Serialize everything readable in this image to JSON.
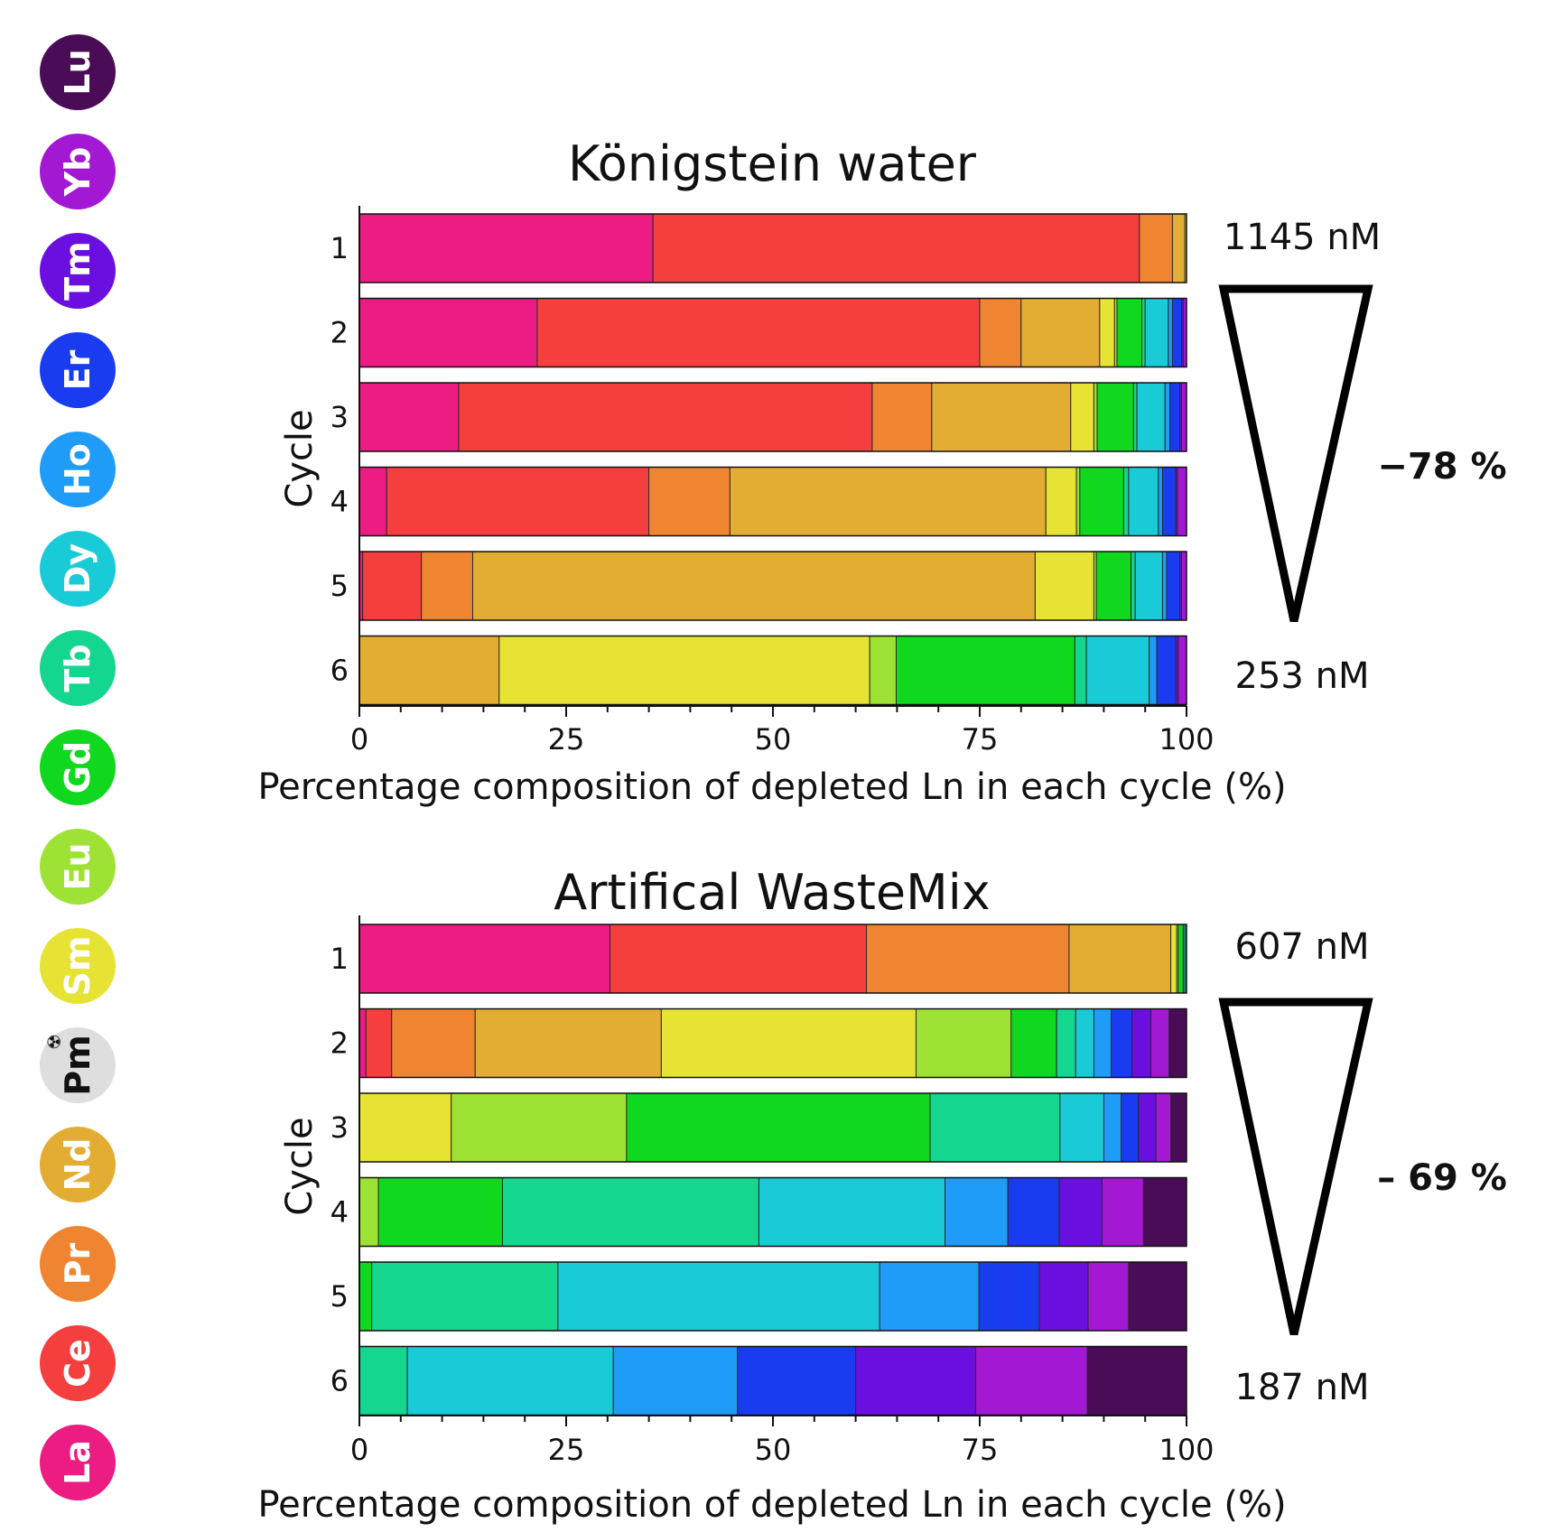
{
  "legend": {
    "elements": [
      {
        "symbol": "Lu",
        "color": "#4a0b57",
        "text_color": "#ffffff"
      },
      {
        "symbol": "Yb",
        "color": "#a318d3",
        "text_color": "#ffffff"
      },
      {
        "symbol": "Tm",
        "color": "#6a0fe0",
        "text_color": "#ffffff"
      },
      {
        "symbol": "Er",
        "color": "#1a3cf0",
        "text_color": "#ffffff"
      },
      {
        "symbol": "Ho",
        "color": "#1e9cf8",
        "text_color": "#ffffff"
      },
      {
        "symbol": "Dy",
        "color": "#19cbd6",
        "text_color": "#ffffff"
      },
      {
        "symbol": "Tb",
        "color": "#15d68e",
        "text_color": "#ffffff"
      },
      {
        "symbol": "Gd",
        "color": "#10d81e",
        "text_color": "#ffffff"
      },
      {
        "symbol": "Eu",
        "color": "#9de234",
        "text_color": "#ffffff"
      },
      {
        "symbol": "Sm",
        "color": "#e6e335",
        "text_color": "#ffffff"
      },
      {
        "symbol": "Pm",
        "color": "#dedede",
        "text_color": "#111111"
      },
      {
        "symbol": "Nd",
        "color": "#e3ac32",
        "text_color": "#ffffff"
      },
      {
        "symbol": "Pr",
        "color": "#ef8530",
        "text_color": "#ffffff"
      },
      {
        "symbol": "Ce",
        "color": "#f53f3f",
        "text_color": "#ffffff"
      },
      {
        "symbol": "La",
        "color": "#ec1c82",
        "text_color": "#ffffff"
      }
    ],
    "radioactive_mark": "☢"
  },
  "chart_data": [
    {
      "type": "bar",
      "orientation": "horizontal",
      "stacked": true,
      "title": "Königstein water",
      "xlabel": "Percentage composition of depleted Ln in each cycle (%)",
      "ylabel": "Cycle",
      "xlim": [
        0,
        100
      ],
      "x_ticks": [
        "0",
        "25",
        "50",
        "75",
        "100"
      ],
      "categories": [
        "1",
        "2",
        "3",
        "4",
        "5",
        "6"
      ],
      "series": [
        {
          "name": "La",
          "color": "#ec1c82",
          "values": [
            35.5,
            21.5,
            12,
            3.3,
            0.4,
            0
          ]
        },
        {
          "name": "Ce",
          "color": "#f53f3f",
          "values": [
            58.8,
            53.5,
            50,
            31.7,
            7.1,
            0
          ]
        },
        {
          "name": "Pr",
          "color": "#ef8530",
          "values": [
            4,
            5,
            7.2,
            9.8,
            6.2,
            0
          ]
        },
        {
          "name": "Nd",
          "color": "#e3ac32",
          "values": [
            1.5,
            9.5,
            16.8,
            38.2,
            68,
            16.9
          ]
        },
        {
          "name": "Sm",
          "color": "#e6e335",
          "values": [
            0.2,
            1.8,
            2.8,
            3.7,
            7.1,
            44.8
          ]
        },
        {
          "name": "Eu",
          "color": "#9de234",
          "values": [
            0,
            0.3,
            0.4,
            0.4,
            0.3,
            3.2
          ]
        },
        {
          "name": "Gd",
          "color": "#10d81e",
          "values": [
            0,
            3,
            4.4,
            5.3,
            4.2,
            21.6
          ]
        },
        {
          "name": "Tb",
          "color": "#15d68e",
          "values": [
            0,
            0.4,
            0.4,
            0.6,
            0.5,
            1.4
          ]
        },
        {
          "name": "Dy",
          "color": "#19cbd6",
          "values": [
            0,
            2.8,
            3.4,
            3.6,
            3.3,
            7.6
          ]
        },
        {
          "name": "Ho",
          "color": "#1e9cf8",
          "values": [
            0,
            0.5,
            0.6,
            0.5,
            0.5,
            0.9
          ]
        },
        {
          "name": "Er",
          "color": "#1a3cf0",
          "values": [
            0,
            1.1,
            1.2,
            1.6,
            1.6,
            2.3
          ]
        },
        {
          "name": "Tm",
          "color": "#6a0fe0",
          "values": [
            0,
            0.2,
            0.2,
            0.2,
            0.2,
            0.3
          ]
        },
        {
          "name": "Yb",
          "color": "#a318d3",
          "values": [
            0,
            0.4,
            0.6,
            1.1,
            0.6,
            1
          ]
        },
        {
          "name": "Lu",
          "color": "#4a0b57",
          "values": [
            0,
            0,
            0,
            0,
            0,
            0
          ]
        }
      ],
      "start_concentration": "1145 nM",
      "end_concentration": "253 nM",
      "depletion": "−78 %"
    },
    {
      "type": "bar",
      "orientation": "horizontal",
      "stacked": true,
      "title": "Artifical WasteMix",
      "xlabel": "Percentage composition of depleted Ln in each cycle (%)",
      "ylabel": "Cycle",
      "xlim": [
        0,
        100
      ],
      "x_ticks": [
        "0",
        "25",
        "50",
        "75",
        "100"
      ],
      "categories": [
        "1",
        "2",
        "3",
        "4",
        "5",
        "6"
      ],
      "series": [
        {
          "name": "La",
          "color": "#ec1c82",
          "values": [
            30.3,
            0.8,
            0,
            0,
            0,
            0
          ]
        },
        {
          "name": "Ce",
          "color": "#f53f3f",
          "values": [
            31,
            3.1,
            0,
            0,
            0,
            0
          ]
        },
        {
          "name": "Pr",
          "color": "#ef8530",
          "values": [
            24.5,
            10.1,
            0,
            0,
            0,
            0
          ]
        },
        {
          "name": "Nd",
          "color": "#e3ac32",
          "values": [
            12.3,
            22.5,
            0,
            0,
            0,
            0
          ]
        },
        {
          "name": "Sm",
          "color": "#e6e335",
          "values": [
            0.7,
            30.8,
            11.1,
            0,
            0,
            0
          ]
        },
        {
          "name": "Eu",
          "color": "#9de234",
          "values": [
            0.2,
            11.5,
            21.2,
            2.3,
            0,
            0
          ]
        },
        {
          "name": "Gd",
          "color": "#10d81e",
          "values": [
            0.6,
            5.5,
            36.7,
            15,
            1.5,
            0
          ]
        },
        {
          "name": "Tb",
          "color": "#15d68e",
          "values": [
            0.2,
            2.3,
            15.7,
            31,
            22.5,
            5.8
          ]
        },
        {
          "name": "Dy",
          "color": "#19cbd6",
          "values": [
            0.2,
            2.2,
            5.3,
            22.5,
            38.9,
            24.9
          ]
        },
        {
          "name": "Ho",
          "color": "#1e9cf8",
          "values": [
            0,
            2.1,
            2.1,
            7.6,
            12,
            15
          ]
        },
        {
          "name": "Er",
          "color": "#1a3cf0",
          "values": [
            0,
            2.5,
            2.1,
            6.2,
            7.3,
            14.3
          ]
        },
        {
          "name": "Tm",
          "color": "#6a0fe0",
          "values": [
            0,
            2.3,
            2.1,
            5.2,
            5.9,
            14.5
          ]
        },
        {
          "name": "Yb",
          "color": "#a318d3",
          "values": [
            0,
            2.2,
            1.8,
            5,
            4.9,
            13.5
          ]
        },
        {
          "name": "Lu",
          "color": "#4a0b57",
          "values": [
            0,
            2.1,
            1.9,
            5.2,
            7,
            12
          ]
        }
      ],
      "start_concentration": "607 nM",
      "end_concentration": "187 nM",
      "depletion": "– 69 %"
    }
  ]
}
